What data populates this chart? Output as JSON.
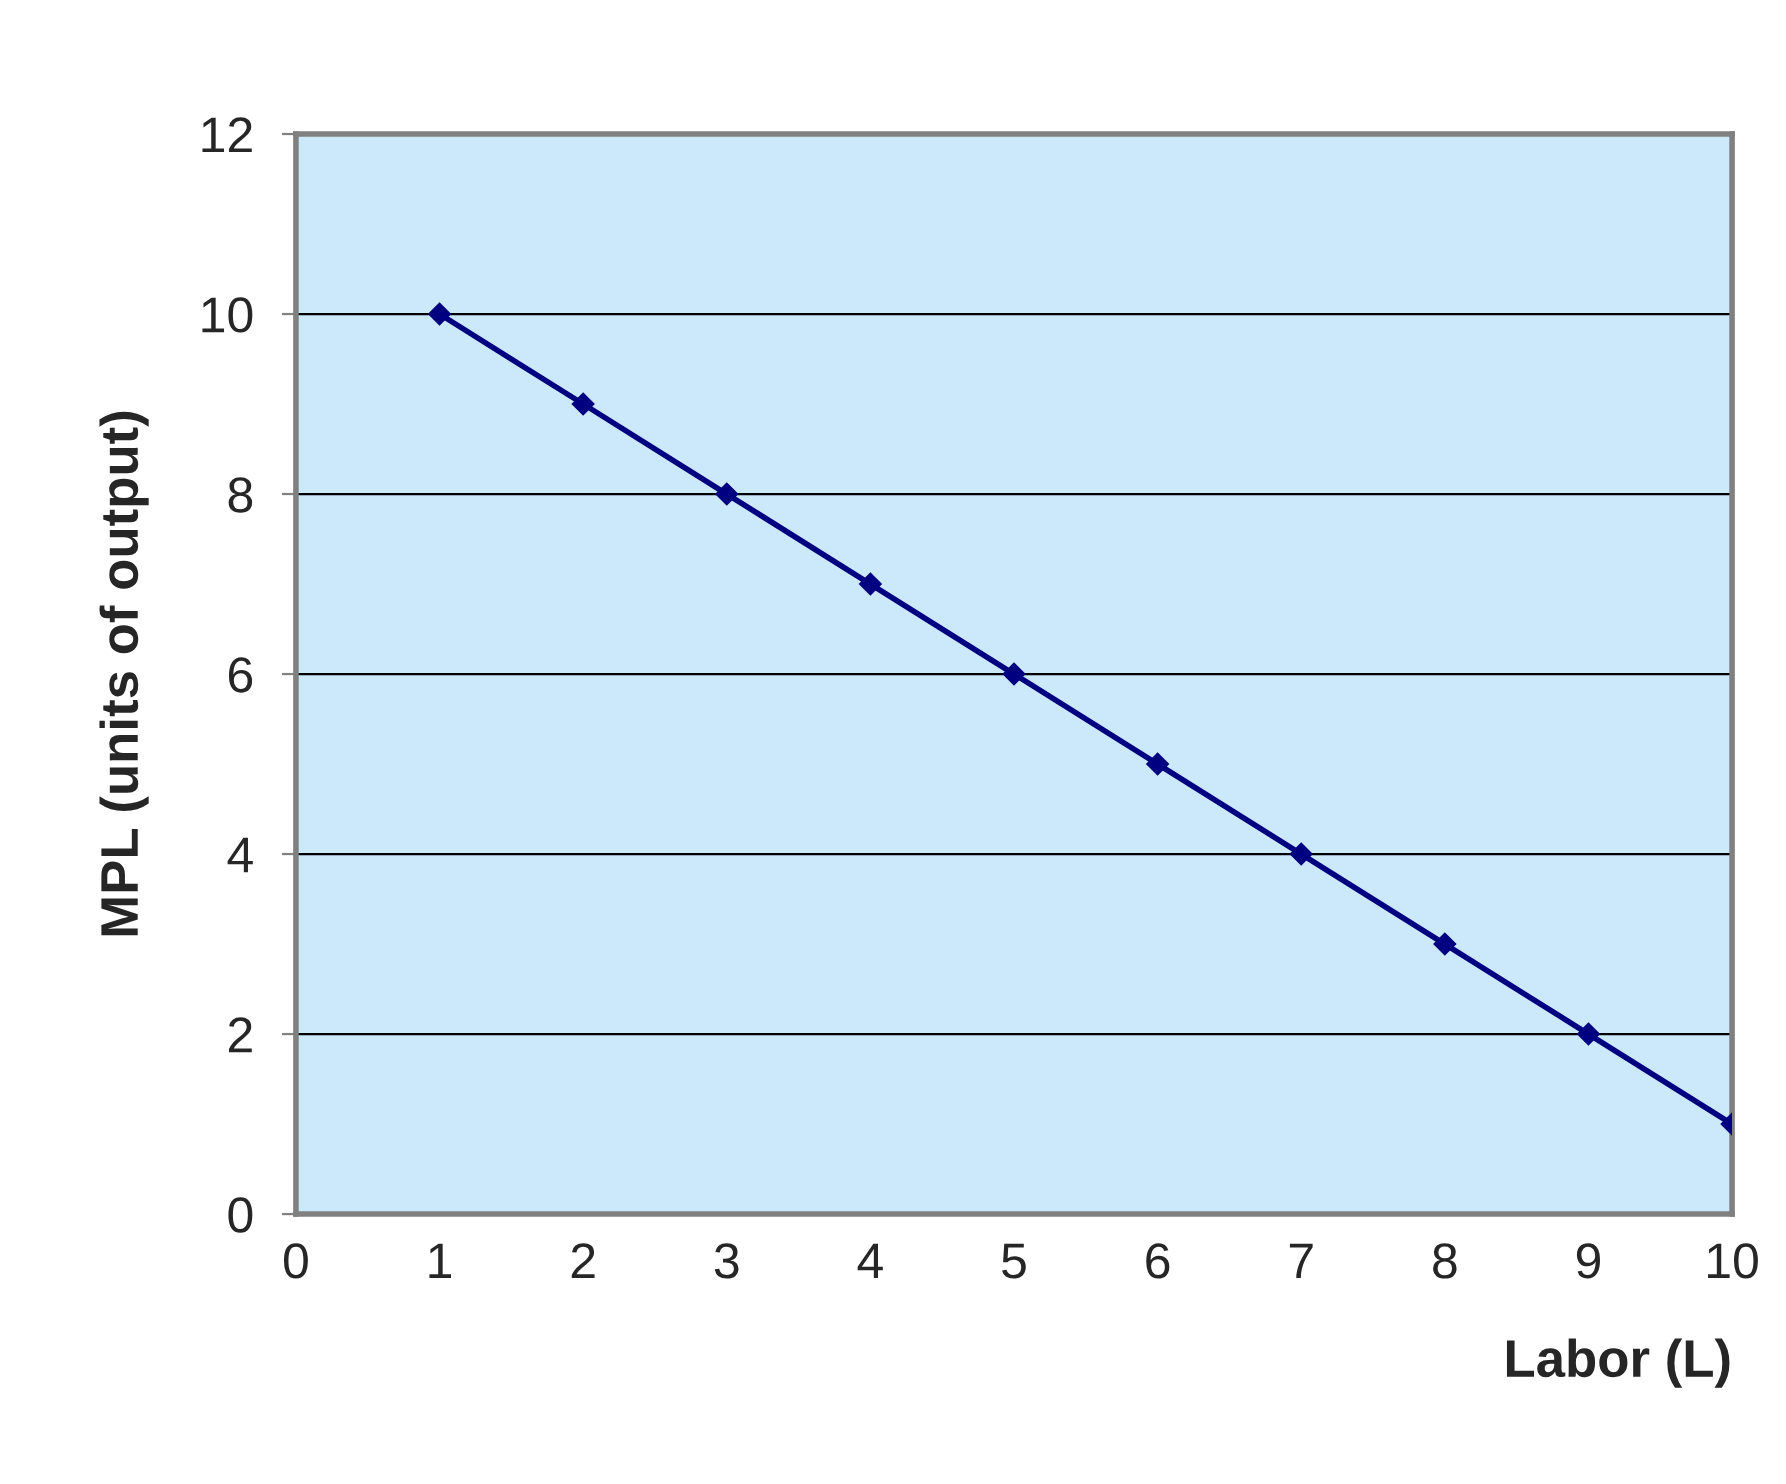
{
  "chart_data": {
    "type": "line",
    "xlabel": "Labor (L)",
    "ylabel": "MPL (units of output)",
    "x": [
      1,
      2,
      3,
      4,
      5,
      6,
      7,
      8,
      9,
      10
    ],
    "series": [
      {
        "color": "#000080",
        "values": [
          10,
          9,
          8,
          7,
          6,
          5,
          4,
          3,
          2,
          1
        ]
      }
    ],
    "xlim": [
      0,
      10
    ],
    "xticks": [
      0,
      1,
      2,
      3,
      4,
      5,
      6,
      7,
      8,
      9,
      10
    ],
    "ylim": [
      0,
      12
    ],
    "yticks": [
      0,
      2,
      4,
      6,
      8,
      10,
      12
    ],
    "grid": "y",
    "marker": "diamond",
    "line_style": "solid",
    "legend": false
  }
}
